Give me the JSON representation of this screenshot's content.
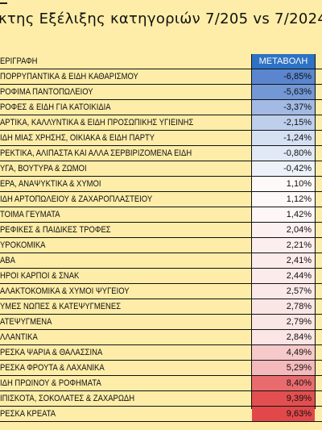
{
  "title": "κτης Εξέλιξης κατηγοριών 7/205 vs 7/2024",
  "chart_data": {
    "type": "table",
    "header": {
      "category": "ΕΡΙΓΡΑΦΗ",
      "value": "ΜΕΤΑΒΟΛΗ"
    },
    "rows": [
      {
        "category": "ΠΟΡΡΥΠΑΝΤΙΚΑ & ΕΙΔΗ ΚΑΘΑΡΙΣΜΟΥ",
        "value": "-6,85%",
        "num": -6.85
      },
      {
        "category": "ΡΟΦΙΜΑ ΠΑΝΤΟΠΩΛΕΙΟΥ",
        "value": "-5,63%",
        "num": -5.63
      },
      {
        "category": "ΡΟΦΕΣ & ΕΙΔΗ ΓΙΑ ΚΑΤΟΙΚΙΔΙΑ",
        "value": "-3,37%",
        "num": -3.37
      },
      {
        "category": "ΑΡΤΙΚΑ, ΚΑΛΛΥΝΤΙΚΑ & ΕΙΔΗ ΠΡΟΣΩΠΙΚΗΣ ΥΓΙΕΙΝΗΣ",
        "value": "-2,15%",
        "num": -2.15
      },
      {
        "category": "ΙΔΗ ΜΙΑΣ ΧΡΗΣΗΣ, ΟΙΚΙΑΚΑ & ΕΙΔΗ ΠΑΡΤΥ",
        "value": "-1,24%",
        "num": -1.24
      },
      {
        "category": "ΡΕΚΤΙΚΑ, ΑΛΙΠΑΣΤΑ ΚΑΙ ΑΛΛΑ ΣΕΡΒΙΡΙΖΟΜΕΝΑ ΕΙΔΗ",
        "value": "-0,80%",
        "num": -0.8
      },
      {
        "category": "ΥΓΑ, ΒΟΥΤΥΡΑ & ΖΩΜΟΙ",
        "value": "-0,42%",
        "num": -0.42
      },
      {
        "category": "ΕΡΑ, ΑΝΑΨΥΚΤΙΚΑ & ΧΥΜΟΙ",
        "value": "1,10%",
        "num": 1.1
      },
      {
        "category": "ΙΔΗ ΑΡΤΟΠΩΛΕΙΟΥ & ΖΑΧΑΡΟΠΛΑΣΤΕΙΟΥ",
        "value": "1,12%",
        "num": 1.12
      },
      {
        "category": "ΤΟΙΜΑ ΓΕΥΜΑΤΑ",
        "value": "1,42%",
        "num": 1.42
      },
      {
        "category": "ΡΕΦΙΚΕΣ & ΠΑΙΔΙΚΕΣ ΤΡΟΦΕΣ",
        "value": "2,04%",
        "num": 2.04
      },
      {
        "category": "ΥΡΟΚΟΜΙΚΑ",
        "value": "2,21%",
        "num": 2.21
      },
      {
        "category": "ΑΒΑ",
        "value": "2,41%",
        "num": 2.41
      },
      {
        "category": "ΗΡΟΙ ΚΑΡΠΟΙ & ΣΝΑΚ",
        "value": "2,44%",
        "num": 2.44
      },
      {
        "category": "ΑΛΑΚΤΟΚΟΜΙΚΑ & ΧΥΜΟΙ ΨΥΓΕΙΟΥ",
        "value": "2,57%",
        "num": 2.57
      },
      {
        "category": "ΥΜΕΣ ΝΩΠΕΣ & ΚΑΤΕΨΥΓΜΕΝΕΣ",
        "value": "2,78%",
        "num": 2.78
      },
      {
        "category": "ΑΤΕΨΥΓΜΕΝΑ",
        "value": "2,79%",
        "num": 2.79
      },
      {
        "category": "ΛΛΑΝΤΙΚΑ",
        "value": "2,84%",
        "num": 2.84
      },
      {
        "category": "ΡΕΣΚΑ ΨΑΡΙΑ & ΘΑΛΑΣΣΙΝΑ",
        "value": "4,49%",
        "num": 4.49
      },
      {
        "category": "ΡΕΣΚΑ ΦΡΟΥΤΑ & ΛΑΧΑΝΙΚΑ",
        "value": "5,29%",
        "num": 5.29
      },
      {
        "category": "ΙΔΗ ΠΡΩΙΝΟΥ & ΡΟΦΗΜΑΤΑ",
        "value": "8,40%",
        "num": 8.4
      },
      {
        "category": "ΙΠΙΣΚΟΤΑ, ΣΟΚΟΛΑΤΕΣ & ΖΑΧΑΡΩΔΗ",
        "value": "9,39%",
        "num": 9.39
      },
      {
        "category": "ΡΕΣΚΑ ΚΡΕΑΤΑ",
        "value": "9,63%",
        "num": 9.63
      }
    ]
  },
  "colors": {
    "background": "#fdeda8",
    "header": "#2e72c4",
    "negative_max": "#5b86cf",
    "positive_max": "#e2484a",
    "neutral": "#ffffff"
  }
}
